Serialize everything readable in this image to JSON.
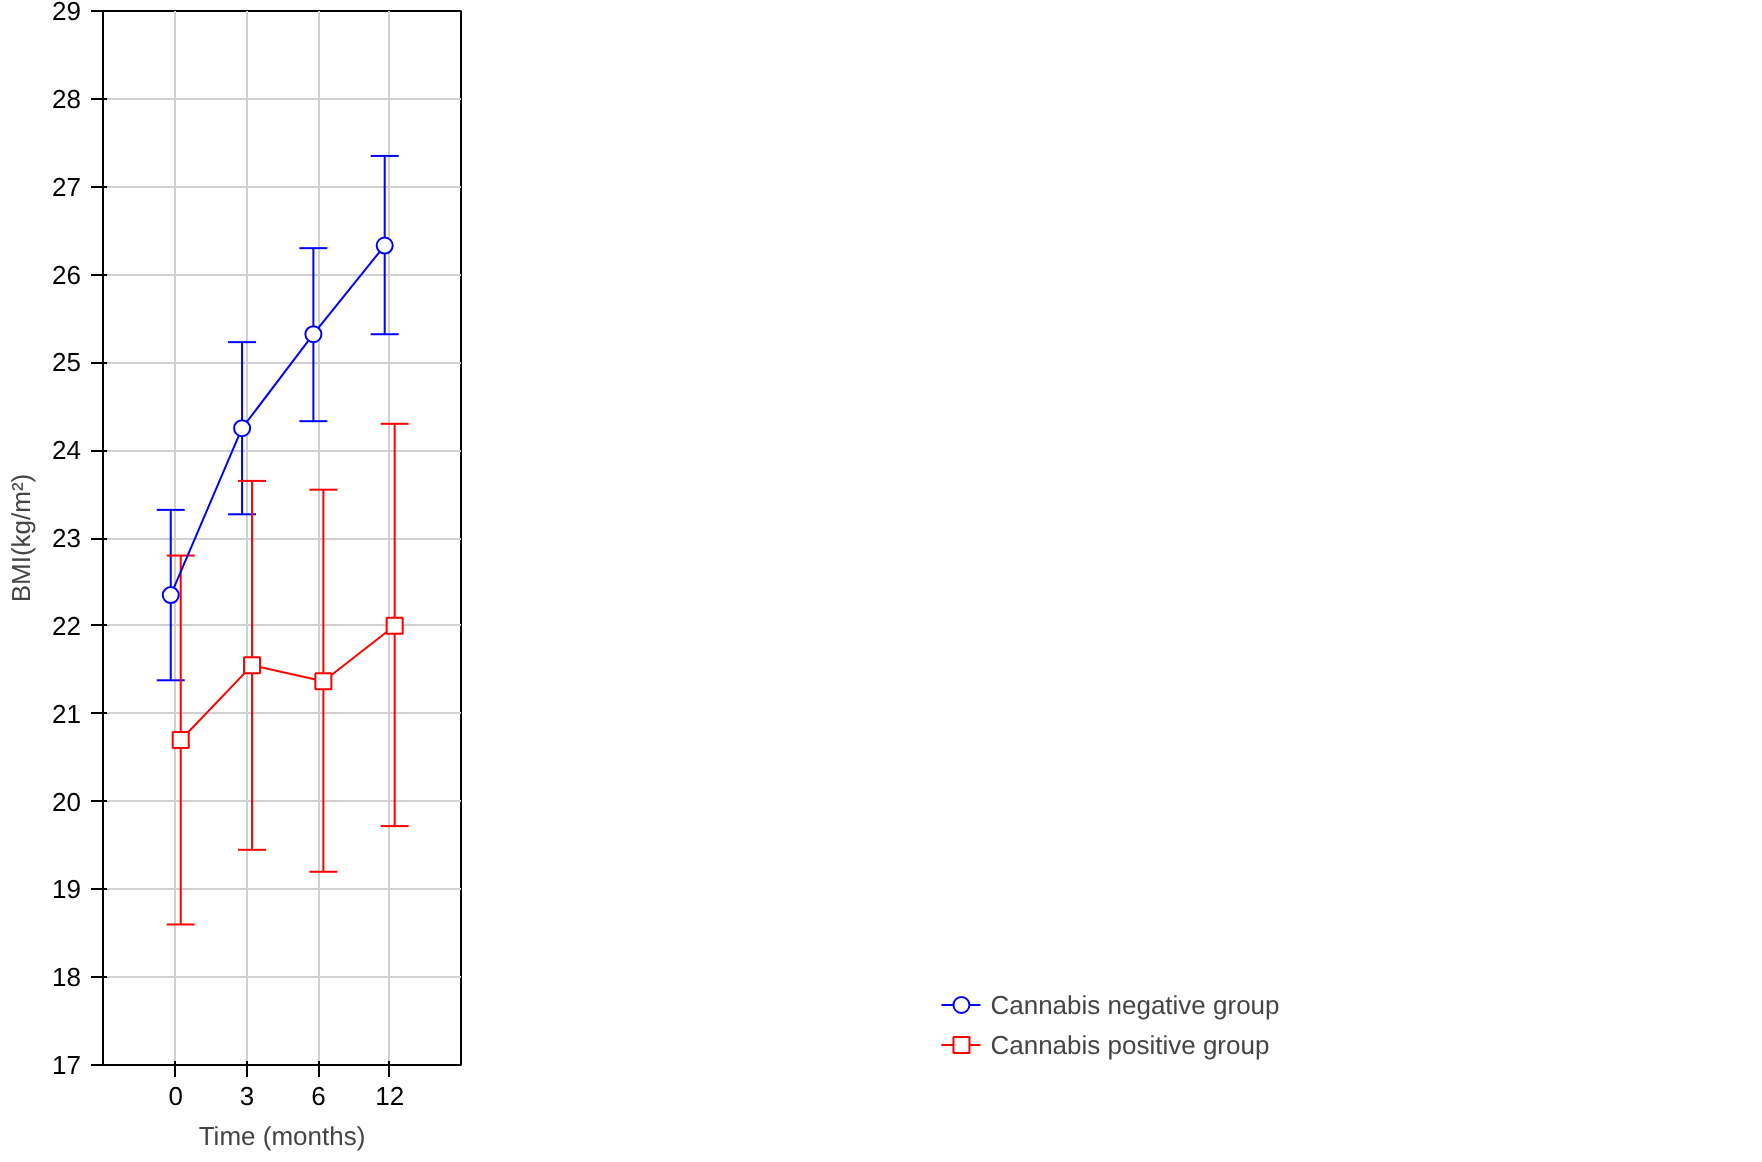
{
  "chart_data": {
    "type": "line",
    "xlabel": "Time (months)",
    "ylabel": "BMI(kg/m²)",
    "categories": [
      "0",
      "3",
      "6",
      "12"
    ],
    "ylim": [
      17,
      29
    ],
    "yticks": [
      17,
      18,
      19,
      20,
      21,
      22,
      23,
      24,
      25,
      26,
      27,
      28,
      29
    ],
    "grid": true,
    "legend": "bottom right",
    "line_style": "solid",
    "series": [
      {
        "name": "Cannabis negative group",
        "color": "#0000ff",
        "marker": "circle",
        "values": [
          22.35,
          24.25,
          25.32,
          26.33
        ],
        "errors": [
          [
            21.38,
            23.32
          ],
          [
            23.27,
            25.23
          ],
          [
            24.33,
            26.3
          ],
          [
            25.32,
            27.35
          ]
        ]
      },
      {
        "name": "Cannabis positive group",
        "color": "#ff0000",
        "marker": "square",
        "values": [
          20.7,
          21.55,
          21.37,
          22.0
        ],
        "errors": [
          [
            18.6,
            22.8
          ],
          [
            19.45,
            23.65
          ],
          [
            19.2,
            23.55
          ],
          [
            19.72,
            24.3
          ]
        ]
      }
    ]
  }
}
